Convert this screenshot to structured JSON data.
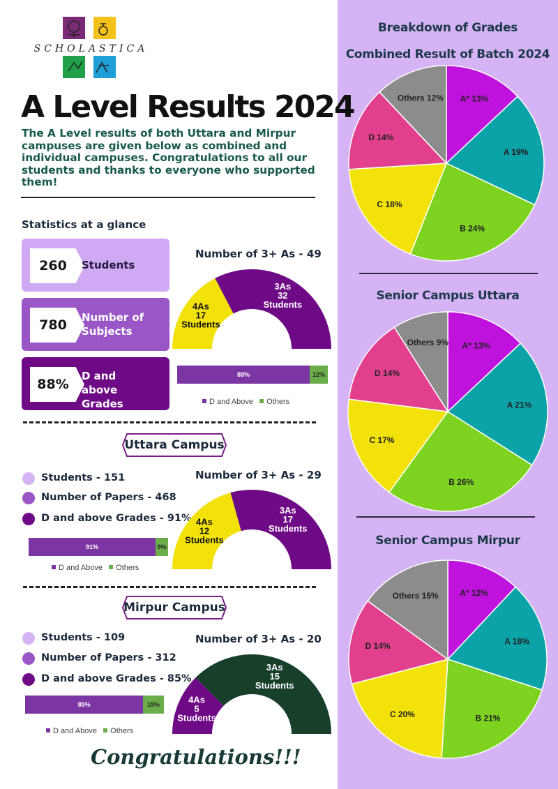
{
  "logo": {
    "wordmark": "SCHOLASTICA",
    "tiles": [
      "#7b2a78",
      "#f4c21a",
      "#21a04a",
      "#1e9fd8"
    ]
  },
  "header": {
    "title": "A Level Results 2024",
    "intro": "The A Level results of both Uttara and Mirpur campuses are given below as combined and individual campuses. Congratulations to all our students and thanks to everyone who supported them!"
  },
  "stats": {
    "heading": "Statistics at a glance",
    "boxes": [
      {
        "value": "260",
        "label": "Students",
        "color": "#cfa9f3"
      },
      {
        "value": "780",
        "label": "Number of Subjects",
        "color": "#9a55c7"
      },
      {
        "value": "88%",
        "label": "D and above Grades",
        "color": "#6f0a86"
      }
    ],
    "arc_title": "Number of 3+ As - 49",
    "arc": {
      "a4_label": "4As",
      "a4_count": "17",
      "a4_unit": "Students",
      "a3_label": "3As",
      "a3_count": "32",
      "a3_unit": "Students",
      "a4_value": 17,
      "a3_value": 32
    },
    "bar": {
      "main": 88,
      "other": 12,
      "main_label": "88%",
      "other_label": "12%"
    }
  },
  "legend": {
    "main": "D and Above",
    "other": "Others"
  },
  "uttara": {
    "tag": "Uttara Campus",
    "bullets": [
      "Students - 151",
      "Number of Papers - 468",
      "D and above Grades - 91%"
    ],
    "arc_title": "Number of 3+ As - 29",
    "arc": {
      "a4_label": "4As",
      "a4_count": "12",
      "a4_unit": "Students",
      "a3_label": "3As",
      "a3_count": "17",
      "a3_unit": "Students",
      "a4_value": 12,
      "a3_value": 17
    },
    "bar": {
      "main": 91,
      "other": 9,
      "main_label": "91%",
      "other_label": "9%"
    }
  },
  "mirpur": {
    "tag": "Mirpur Campus",
    "bullets": [
      "Students - 109",
      "Number of Papers - 312",
      "D and above Grades - 85%"
    ],
    "arc_title": "Number of 3+ As - 20",
    "arc": {
      "a4_label": "4As",
      "a4_count": "5",
      "a4_unit": "Students",
      "a3_label": "3As",
      "a3_count": "15",
      "a3_unit": "Students",
      "a4_value": 5,
      "a3_value": 15
    },
    "bar": {
      "main": 85,
      "other": 15,
      "main_label": "85%",
      "other_label": "15%"
    }
  },
  "grades": {
    "heading": "Breakdown of Grades",
    "combined_title": "Combined Result of Batch 2024",
    "uttara_title": "Senior Campus Uttara",
    "mirpur_title": "Senior Campus Mirpur"
  },
  "footer": {
    "congrats": "Congratulations!!!"
  },
  "chart_data": [
    {
      "type": "pie",
      "title": "Combined Result of Batch 2024",
      "categories": [
        "A*",
        "A",
        "B",
        "C",
        "D",
        "Others"
      ],
      "values": [
        13,
        19,
        24,
        18,
        14,
        12
      ],
      "colors": [
        "#c012dd",
        "#0ba3a8",
        "#7ed321",
        "#f2e20a",
        "#e2408f",
        "#8c8c8c"
      ]
    },
    {
      "type": "pie",
      "title": "Senior Campus Uttara",
      "categories": [
        "A*",
        "A",
        "B",
        "C",
        "D",
        "Others"
      ],
      "values": [
        13,
        21,
        26,
        17,
        14,
        9
      ],
      "colors": [
        "#c012dd",
        "#0ba3a8",
        "#7ed321",
        "#f2e20a",
        "#e2408f",
        "#8c8c8c"
      ]
    },
    {
      "type": "pie",
      "title": "Senior Campus Mirpur",
      "categories": [
        "A*",
        "A",
        "B",
        "C",
        "D",
        "Others"
      ],
      "values": [
        12,
        18,
        21,
        20,
        14,
        15
      ],
      "colors": [
        "#c012dd",
        "#0ba3a8",
        "#7ed321",
        "#f2e20a",
        "#e2408f",
        "#8c8c8c"
      ]
    },
    {
      "type": "bar",
      "title": "Number of 3+ As - 49",
      "categories": [
        "4As",
        "3As"
      ],
      "values": [
        17,
        32
      ]
    },
    {
      "type": "bar",
      "title": "Number of 3+ As - 29",
      "categories": [
        "4As",
        "3As"
      ],
      "values": [
        12,
        17
      ]
    },
    {
      "type": "bar",
      "title": "Number of 3+ As - 20",
      "categories": [
        "4As",
        "3As"
      ],
      "values": [
        5,
        15
      ]
    }
  ]
}
